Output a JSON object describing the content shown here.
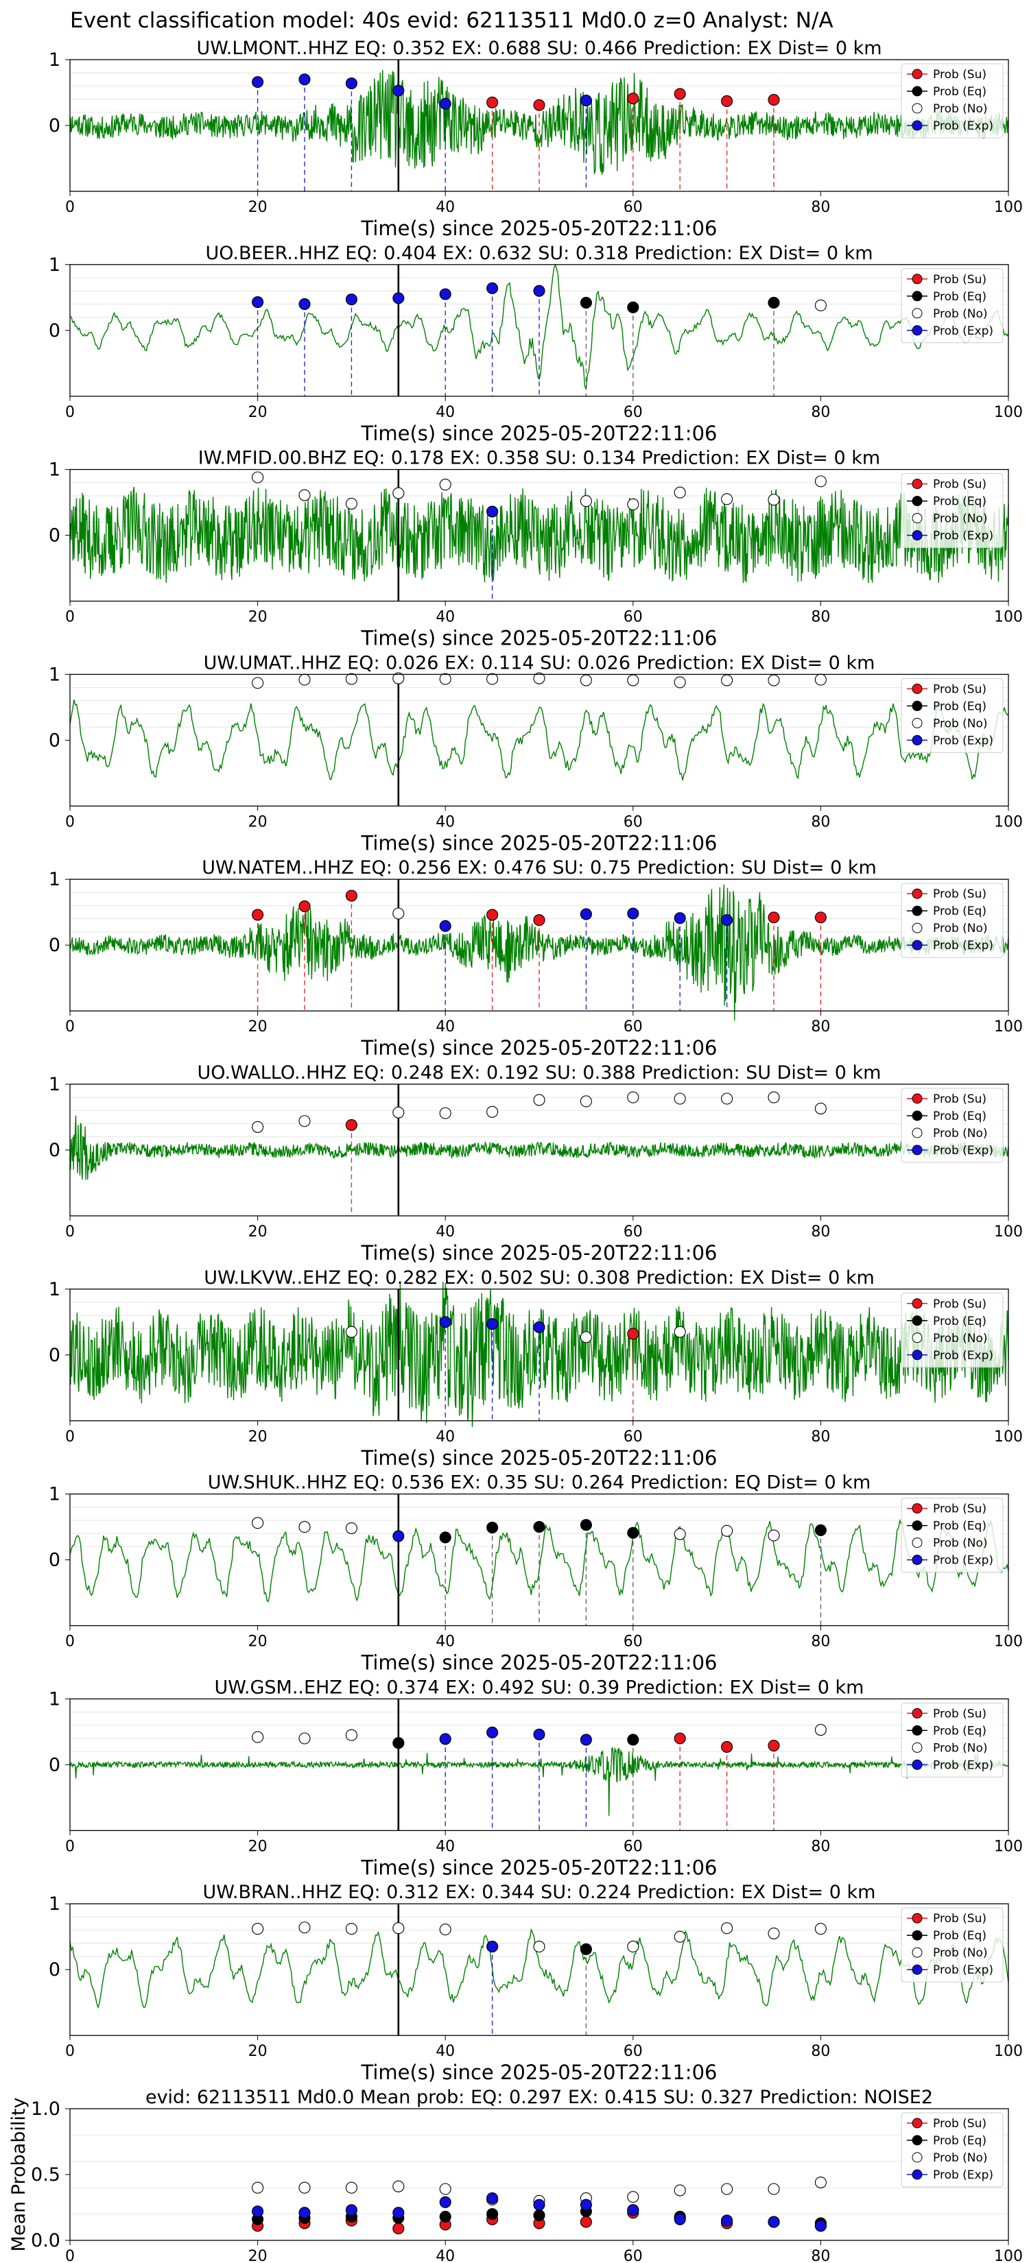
{
  "figure_title": "Event classification model: 40s evid: 62113511 Md0.0 z=0 Analyst: N/A",
  "legend_labels": [
    "Prob (Su)",
    "Prob (Eq)",
    "Prob (No)",
    "Prob (Exp)"
  ],
  "colors": {
    "su": "#e8141a",
    "eq": "#000000",
    "no": "#ffffff",
    "exp": "#1010d8",
    "trace": "#008000",
    "ref_line": "#000000"
  },
  "xlabel": "Time(s) since 2025-05-20T22:11:06",
  "xticks": [
    0,
    20,
    40,
    60,
    80,
    100
  ],
  "yticks_trace": [
    "1",
    "0"
  ],
  "reference_time": 35,
  "chart_data": [
    {
      "type": "scatter",
      "title": "UW.LMONT..HHZ   EQ: 0.352   EX: 0.688   SU: 0.466    Prediction: EX     Dist= 0 km",
      "xlim": [
        0,
        100
      ],
      "ylim": [
        -1,
        1
      ],
      "trace_style": "noisy",
      "trace_seed": 11,
      "trace_amp": 0.16,
      "bursts": [
        {
          "t": 36,
          "w": 7,
          "a": 0.55
        },
        {
          "t": 58,
          "w": 6,
          "a": 0.5
        }
      ],
      "points": [
        {
          "x": 20,
          "y": 0.66,
          "cls": "exp"
        },
        {
          "x": 25,
          "y": 0.7,
          "cls": "exp"
        },
        {
          "x": 30,
          "y": 0.64,
          "cls": "exp"
        },
        {
          "x": 35,
          "y": 0.53,
          "cls": "exp"
        },
        {
          "x": 40,
          "y": 0.33,
          "cls": "exp"
        },
        {
          "x": 45,
          "y": 0.35,
          "cls": "su"
        },
        {
          "x": 50,
          "y": 0.31,
          "cls": "su"
        },
        {
          "x": 55,
          "y": 0.38,
          "cls": "exp"
        },
        {
          "x": 60,
          "y": 0.41,
          "cls": "su"
        },
        {
          "x": 65,
          "y": 0.48,
          "cls": "su"
        },
        {
          "x": 70,
          "y": 0.37,
          "cls": "su"
        },
        {
          "x": 75,
          "y": 0.39,
          "cls": "su"
        }
      ]
    },
    {
      "type": "scatter",
      "title": "UO.BEER..HHZ   EQ: 0.404   EX: 0.632   SU: 0.318    Prediction: EX     Dist= 0 km",
      "xlim": [
        0,
        100
      ],
      "ylim": [
        -1,
        1
      ],
      "trace_style": "smooth",
      "trace_seed": 23,
      "trace_amp": 0.3,
      "bursts": [
        {
          "t": 52,
          "w": 8,
          "a": 0.75
        }
      ],
      "points": [
        {
          "x": 20,
          "y": 0.43,
          "cls": "exp"
        },
        {
          "x": 25,
          "y": 0.4,
          "cls": "exp"
        },
        {
          "x": 30,
          "y": 0.47,
          "cls": "exp"
        },
        {
          "x": 35,
          "y": 0.49,
          "cls": "exp"
        },
        {
          "x": 40,
          "y": 0.55,
          "cls": "exp"
        },
        {
          "x": 45,
          "y": 0.64,
          "cls": "exp"
        },
        {
          "x": 50,
          "y": 0.6,
          "cls": "exp"
        },
        {
          "x": 55,
          "y": 0.42,
          "cls": "eq"
        },
        {
          "x": 60,
          "y": 0.35,
          "cls": "eq"
        },
        {
          "x": 75,
          "y": 0.42,
          "cls": "eq"
        },
        {
          "x": 80,
          "y": 0.38,
          "cls": "no"
        }
      ]
    },
    {
      "type": "scatter",
      "title": "IW.MFID.00.BHZ   EQ: 0.178   EX: 0.358   SU: 0.134    Prediction: EX     Dist= 0 km",
      "xlim": [
        0,
        100
      ],
      "ylim": [
        -1,
        1
      ],
      "trace_style": "noisy",
      "trace_seed": 37,
      "trace_amp": 0.55,
      "bursts": [],
      "points": [
        {
          "x": 20,
          "y": 0.88,
          "cls": "no"
        },
        {
          "x": 25,
          "y": 0.61,
          "cls": "no"
        },
        {
          "x": 30,
          "y": 0.48,
          "cls": "no"
        },
        {
          "x": 35,
          "y": 0.64,
          "cls": "no"
        },
        {
          "x": 40,
          "y": 0.77,
          "cls": "no"
        },
        {
          "x": 45,
          "y": 0.36,
          "cls": "exp"
        },
        {
          "x": 55,
          "y": 0.52,
          "cls": "no"
        },
        {
          "x": 60,
          "y": 0.47,
          "cls": "no"
        },
        {
          "x": 65,
          "y": 0.65,
          "cls": "no"
        },
        {
          "x": 70,
          "y": 0.55,
          "cls": "no"
        },
        {
          "x": 75,
          "y": 0.54,
          "cls": "no"
        },
        {
          "x": 80,
          "y": 0.82,
          "cls": "no"
        }
      ]
    },
    {
      "type": "scatter",
      "title": "UW.UMAT..HHZ   EQ: 0.026   EX: 0.114   SU: 0.026    Prediction: EX     Dist= 0 km",
      "xlim": [
        0,
        100
      ],
      "ylim": [
        -1,
        1
      ],
      "trace_style": "smooth",
      "trace_seed": 41,
      "trace_amp": 0.6,
      "bursts": [],
      "points": [
        {
          "x": 20,
          "y": 0.87,
          "cls": "no"
        },
        {
          "x": 25,
          "y": 0.92,
          "cls": "no"
        },
        {
          "x": 30,
          "y": 0.93,
          "cls": "no"
        },
        {
          "x": 35,
          "y": 0.94,
          "cls": "no"
        },
        {
          "x": 40,
          "y": 0.93,
          "cls": "no"
        },
        {
          "x": 45,
          "y": 0.93,
          "cls": "no"
        },
        {
          "x": 50,
          "y": 0.94,
          "cls": "no"
        },
        {
          "x": 55,
          "y": 0.91,
          "cls": "no"
        },
        {
          "x": 60,
          "y": 0.91,
          "cls": "no"
        },
        {
          "x": 65,
          "y": 0.88,
          "cls": "no"
        },
        {
          "x": 70,
          "y": 0.91,
          "cls": "no"
        },
        {
          "x": 75,
          "y": 0.91,
          "cls": "no"
        },
        {
          "x": 80,
          "y": 0.92,
          "cls": "no"
        }
      ]
    },
    {
      "type": "scatter",
      "title": "UW.NATEM..HHZ   EQ: 0.256   EX: 0.476   SU: 0.75    Prediction: SU     Dist= 0 km",
      "xlim": [
        0,
        100
      ],
      "ylim": [
        -1,
        1
      ],
      "trace_style": "noisy",
      "trace_seed": 53,
      "trace_amp": 0.12,
      "bursts": [
        {
          "t": 25,
          "w": 5,
          "a": 0.4
        },
        {
          "t": 46,
          "w": 4,
          "a": 0.35
        },
        {
          "t": 70,
          "w": 5,
          "a": 0.8
        }
      ],
      "points": [
        {
          "x": 20,
          "y": 0.46,
          "cls": "su"
        },
        {
          "x": 25,
          "y": 0.59,
          "cls": "su"
        },
        {
          "x": 30,
          "y": 0.75,
          "cls": "su"
        },
        {
          "x": 35,
          "y": 0.48,
          "cls": "no"
        },
        {
          "x": 40,
          "y": 0.29,
          "cls": "exp"
        },
        {
          "x": 45,
          "y": 0.46,
          "cls": "su"
        },
        {
          "x": 50,
          "y": 0.38,
          "cls": "su"
        },
        {
          "x": 55,
          "y": 0.47,
          "cls": "exp"
        },
        {
          "x": 60,
          "y": 0.48,
          "cls": "exp"
        },
        {
          "x": 65,
          "y": 0.41,
          "cls": "exp"
        },
        {
          "x": 70,
          "y": 0.38,
          "cls": "exp"
        },
        {
          "x": 75,
          "y": 0.42,
          "cls": "su"
        },
        {
          "x": 80,
          "y": 0.42,
          "cls": "su"
        }
      ]
    },
    {
      "type": "scatter",
      "title": "UO.WALLO..HHZ   EQ: 0.248   EX: 0.192   SU: 0.388    Prediction: SU     Dist= 0 km",
      "xlim": [
        0,
        100
      ],
      "ylim": [
        -1,
        1
      ],
      "trace_style": "noisy",
      "trace_seed": 67,
      "trace_amp": 0.09,
      "bursts": [
        {
          "t": 1,
          "w": 2,
          "a": 0.35
        }
      ],
      "points": [
        {
          "x": 20,
          "y": 0.35,
          "cls": "no"
        },
        {
          "x": 25,
          "y": 0.44,
          "cls": "no"
        },
        {
          "x": 30,
          "y": 0.38,
          "cls": "su"
        },
        {
          "x": 35,
          "y": 0.57,
          "cls": "no"
        },
        {
          "x": 40,
          "y": 0.56,
          "cls": "no"
        },
        {
          "x": 45,
          "y": 0.58,
          "cls": "no"
        },
        {
          "x": 50,
          "y": 0.76,
          "cls": "no"
        },
        {
          "x": 55,
          "y": 0.74,
          "cls": "no"
        },
        {
          "x": 60,
          "y": 0.8,
          "cls": "no"
        },
        {
          "x": 65,
          "y": 0.78,
          "cls": "no"
        },
        {
          "x": 70,
          "y": 0.78,
          "cls": "no"
        },
        {
          "x": 75,
          "y": 0.8,
          "cls": "no"
        },
        {
          "x": 80,
          "y": 0.63,
          "cls": "no"
        }
      ]
    },
    {
      "type": "scatter",
      "title": "UW.LKVW..EHZ   EQ: 0.282   EX: 0.502   SU: 0.308    Prediction: EX     Dist= 0 km",
      "xlim": [
        0,
        100
      ],
      "ylim": [
        -1,
        1
      ],
      "trace_style": "noisy",
      "trace_seed": 79,
      "trace_amp": 0.55,
      "bursts": [
        {
          "t": 40,
          "w": 9,
          "a": 0.35
        }
      ],
      "points": [
        {
          "x": 30,
          "y": 0.35,
          "cls": "no"
        },
        {
          "x": 40,
          "y": 0.5,
          "cls": "exp"
        },
        {
          "x": 45,
          "y": 0.47,
          "cls": "exp"
        },
        {
          "x": 50,
          "y": 0.42,
          "cls": "exp"
        },
        {
          "x": 55,
          "y": 0.27,
          "cls": "no"
        },
        {
          "x": 60,
          "y": 0.32,
          "cls": "su"
        },
        {
          "x": 65,
          "y": 0.35,
          "cls": "no"
        }
      ]
    },
    {
      "type": "scatter",
      "title": "UW.SHUK..HHZ   EQ: 0.536   EX: 0.35   SU: 0.264    Prediction: EQ     Dist= 0 km",
      "xlim": [
        0,
        100
      ],
      "ylim": [
        -1,
        1
      ],
      "trace_style": "smooth",
      "trace_seed": 83,
      "trace_amp": 0.6,
      "bursts": [],
      "points": [
        {
          "x": 20,
          "y": 0.56,
          "cls": "no"
        },
        {
          "x": 25,
          "y": 0.5,
          "cls": "no"
        },
        {
          "x": 30,
          "y": 0.48,
          "cls": "no"
        },
        {
          "x": 35,
          "y": 0.36,
          "cls": "exp"
        },
        {
          "x": 40,
          "y": 0.34,
          "cls": "eq"
        },
        {
          "x": 45,
          "y": 0.49,
          "cls": "eq"
        },
        {
          "x": 50,
          "y": 0.5,
          "cls": "eq"
        },
        {
          "x": 55,
          "y": 0.53,
          "cls": "eq"
        },
        {
          "x": 60,
          "y": 0.41,
          "cls": "eq"
        },
        {
          "x": 65,
          "y": 0.39,
          "cls": "no"
        },
        {
          "x": 70,
          "y": 0.44,
          "cls": "no"
        },
        {
          "x": 75,
          "y": 0.37,
          "cls": "no"
        },
        {
          "x": 80,
          "y": 0.45,
          "cls": "eq"
        }
      ]
    },
    {
      "type": "scatter",
      "title": "UW.GSM..EHZ   EQ: 0.374   EX: 0.492   SU: 0.39    Prediction: EX     Dist= 0 km",
      "xlim": [
        0,
        100
      ],
      "ylim": [
        -1,
        1
      ],
      "trace_style": "spiky",
      "trace_seed": 97,
      "trace_amp": 0.06,
      "bursts": [
        {
          "t": 58,
          "w": 3,
          "a": 0.35
        }
      ],
      "points": [
        {
          "x": 20,
          "y": 0.42,
          "cls": "no"
        },
        {
          "x": 25,
          "y": 0.4,
          "cls": "no"
        },
        {
          "x": 30,
          "y": 0.45,
          "cls": "no"
        },
        {
          "x": 35,
          "y": 0.33,
          "cls": "eq"
        },
        {
          "x": 40,
          "y": 0.39,
          "cls": "exp"
        },
        {
          "x": 45,
          "y": 0.49,
          "cls": "exp"
        },
        {
          "x": 50,
          "y": 0.46,
          "cls": "exp"
        },
        {
          "x": 55,
          "y": 0.38,
          "cls": "exp"
        },
        {
          "x": 60,
          "y": 0.38,
          "cls": "eq"
        },
        {
          "x": 65,
          "y": 0.4,
          "cls": "su"
        },
        {
          "x": 70,
          "y": 0.27,
          "cls": "su"
        },
        {
          "x": 75,
          "y": 0.29,
          "cls": "su"
        },
        {
          "x": 80,
          "y": 0.53,
          "cls": "no"
        }
      ]
    },
    {
      "type": "scatter",
      "title": "UW.BRAN..HHZ   EQ: 0.312   EX: 0.344   SU: 0.224    Prediction: EX     Dist= 0 km",
      "xlim": [
        0,
        100
      ],
      "ylim": [
        -1,
        1
      ],
      "trace_style": "smooth",
      "trace_seed": 101,
      "trace_amp": 0.55,
      "bursts": [],
      "points": [
        {
          "x": 20,
          "y": 0.62,
          "cls": "no"
        },
        {
          "x": 25,
          "y": 0.64,
          "cls": "no"
        },
        {
          "x": 30,
          "y": 0.62,
          "cls": "no"
        },
        {
          "x": 35,
          "y": 0.63,
          "cls": "no"
        },
        {
          "x": 40,
          "y": 0.61,
          "cls": "no"
        },
        {
          "x": 45,
          "y": 0.35,
          "cls": "exp"
        },
        {
          "x": 50,
          "y": 0.35,
          "cls": "no"
        },
        {
          "x": 55,
          "y": 0.31,
          "cls": "eq"
        },
        {
          "x": 60,
          "y": 0.35,
          "cls": "no"
        },
        {
          "x": 65,
          "y": 0.5,
          "cls": "no"
        },
        {
          "x": 70,
          "y": 0.63,
          "cls": "no"
        },
        {
          "x": 75,
          "y": 0.55,
          "cls": "no"
        },
        {
          "x": 80,
          "y": 0.62,
          "cls": "no"
        }
      ]
    },
    {
      "type": "scatter",
      "title": "evid: 62113511  Md0.0   Mean prob:   EQ: 0.297   EX: 0.415   SU: 0.327    Prediction: NOISE2",
      "ylabel": "Mean Probability",
      "xlim": [
        0,
        100
      ],
      "ylim": [
        0,
        1
      ],
      "yticks": [
        "0.0",
        "0.5",
        "1.0"
      ],
      "series": [
        {
          "name": "Prob (Su)",
          "cls": "su",
          "x": [
            20,
            25,
            30,
            35,
            40,
            45,
            50,
            55,
            60,
            65,
            70,
            75,
            80
          ],
          "y": [
            0.11,
            0.13,
            0.15,
            0.09,
            0.12,
            0.16,
            0.13,
            0.14,
            0.21,
            0.17,
            0.13,
            0.14,
            0.11
          ]
        },
        {
          "name": "Prob (Eq)",
          "cls": "eq",
          "x": [
            20,
            25,
            30,
            35,
            40,
            45,
            50,
            55,
            60,
            65,
            70,
            75,
            80
          ],
          "y": [
            0.16,
            0.17,
            0.18,
            0.17,
            0.18,
            0.2,
            0.19,
            0.22,
            0.23,
            0.18,
            0.15,
            0.14,
            0.13
          ]
        },
        {
          "name": "Prob (No)",
          "cls": "no",
          "x": [
            20,
            25,
            30,
            35,
            40,
            45,
            50,
            55,
            60,
            65,
            70,
            75,
            80
          ],
          "y": [
            0.4,
            0.4,
            0.4,
            0.41,
            0.39,
            0.31,
            0.3,
            0.32,
            0.33,
            0.38,
            0.39,
            0.39,
            0.44
          ]
        },
        {
          "name": "Prob (Exp)",
          "cls": "exp",
          "x": [
            20,
            25,
            30,
            35,
            40,
            45,
            50,
            55,
            60,
            65,
            70,
            75,
            80
          ],
          "y": [
            0.22,
            0.21,
            0.23,
            0.21,
            0.29,
            0.32,
            0.27,
            0.27,
            0.23,
            0.16,
            0.15,
            0.14,
            0.11
          ]
        }
      ]
    }
  ]
}
